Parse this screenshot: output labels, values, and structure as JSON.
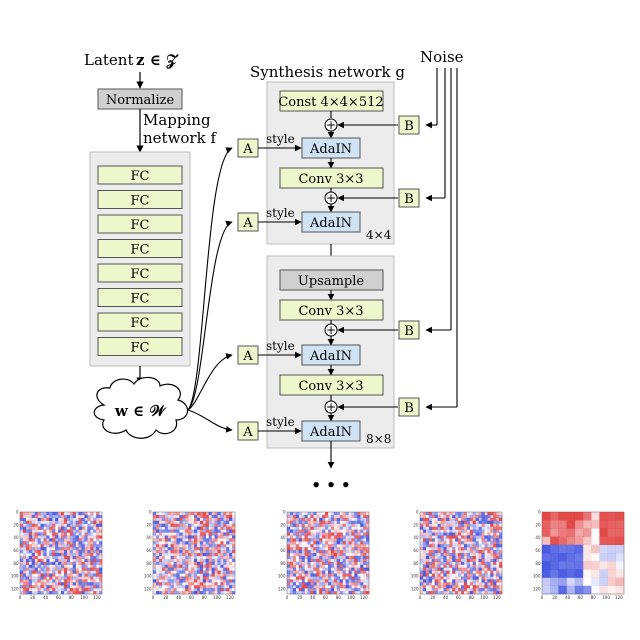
{
  "latent": {
    "prefix": "Latent",
    "symbol": "z ∈ 𝒵"
  },
  "normalize_label": "Normalize",
  "mapping": {
    "title_line1": "Mapping",
    "title_line2": "network f",
    "fc_label": "FC",
    "fc_count": 8
  },
  "w_label": "w ∈ 𝒲",
  "synthesis": {
    "title": "Synthesis network g"
  },
  "noise_label": "Noise",
  "blocks": {
    "const_label": "Const 4×4×512",
    "adain_label": "AdaIN",
    "conv_label": "Conv 3×3",
    "upsample_label": "Upsample",
    "res1_label": "4×4",
    "res2_label": "8×8"
  },
  "a_label": "A",
  "b_label": "B",
  "style_label": "style",
  "plus_symbol": "+",
  "ellipsis": "• • •",
  "heatmaps": {
    "count": 5,
    "y_ticks": [
      "0",
      "20",
      "40",
      "60",
      "80",
      "100",
      "120"
    ],
    "x_ticks": [
      "0",
      "20",
      "40",
      "60",
      "80",
      "100",
      "120"
    ]
  }
}
